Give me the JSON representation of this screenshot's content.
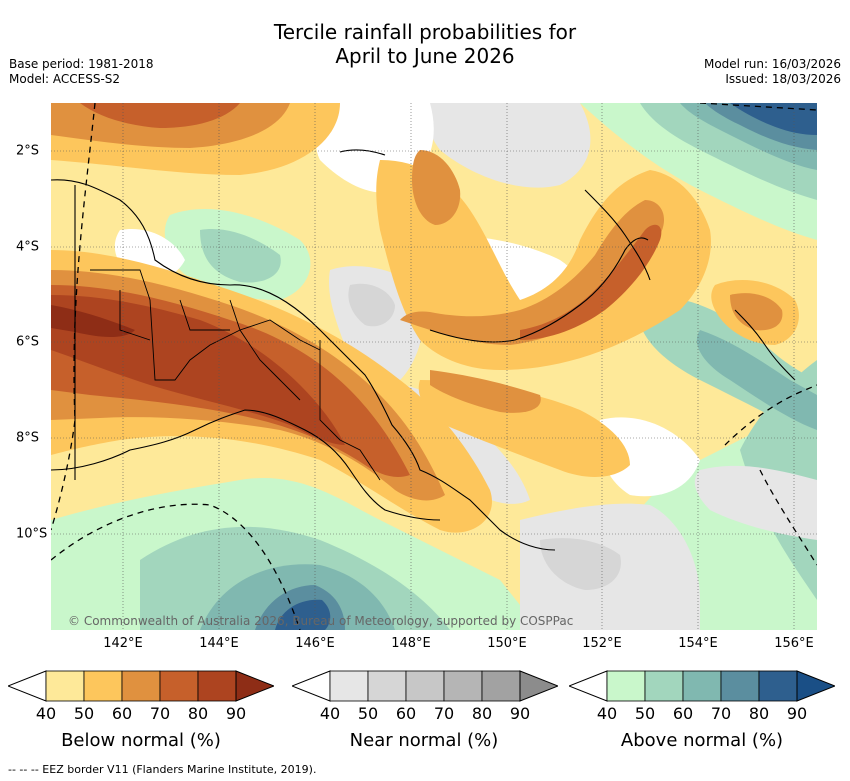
{
  "header": {
    "title_line1": "Tercile rainfall probabilities for",
    "title_line2": "April to June 2026",
    "base_period": "Base period: 1981-2018",
    "model": "Model: ACCESS-S2",
    "model_run": "Model run: 16/03/2026",
    "issued": "Issued: 18/03/2026"
  },
  "map": {
    "lon_labels": [
      "142°E",
      "144°E",
      "146°E",
      "148°E",
      "150°E",
      "152°E",
      "154°E",
      "156°E"
    ],
    "lat_labels": [
      "2°S",
      "4°S",
      "6°S",
      "8°S",
      "10°S"
    ],
    "credit": "© Commonwealth of Australia 2026, Bureau of Meteorology, supported by COSPPac"
  },
  "colorbars": [
    {
      "title": "Below normal (%)",
      "ticks": [
        "40",
        "50",
        "60",
        "70",
        "80",
        "90"
      ],
      "colors": [
        "#ffffff",
        "#fee999",
        "#fdc65c",
        "#e0913f",
        "#c6602b",
        "#ad4420",
        "#8e2d16"
      ]
    },
    {
      "title": "Near normal (%)",
      "ticks": [
        "40",
        "50",
        "60",
        "70",
        "80",
        "90"
      ],
      "colors": [
        "#ffffff",
        "#e6e6e6",
        "#d6d6d6",
        "#c7c7c7",
        "#b5b5b5",
        "#a2a2a2",
        "#8c8c8c"
      ]
    },
    {
      "title": "Above normal (%)",
      "ticks": [
        "40",
        "50",
        "60",
        "70",
        "80",
        "90"
      ],
      "colors": [
        "#ffffff",
        "#c9f7cb",
        "#a2d6bd",
        "#80b8b0",
        "#5b8e9f",
        "#2e5f8e",
        "#1a4f86"
      ]
    }
  ],
  "footnote": "--  --  -- EEZ border V11 (Flanders Marine Institute, 2019)."
}
